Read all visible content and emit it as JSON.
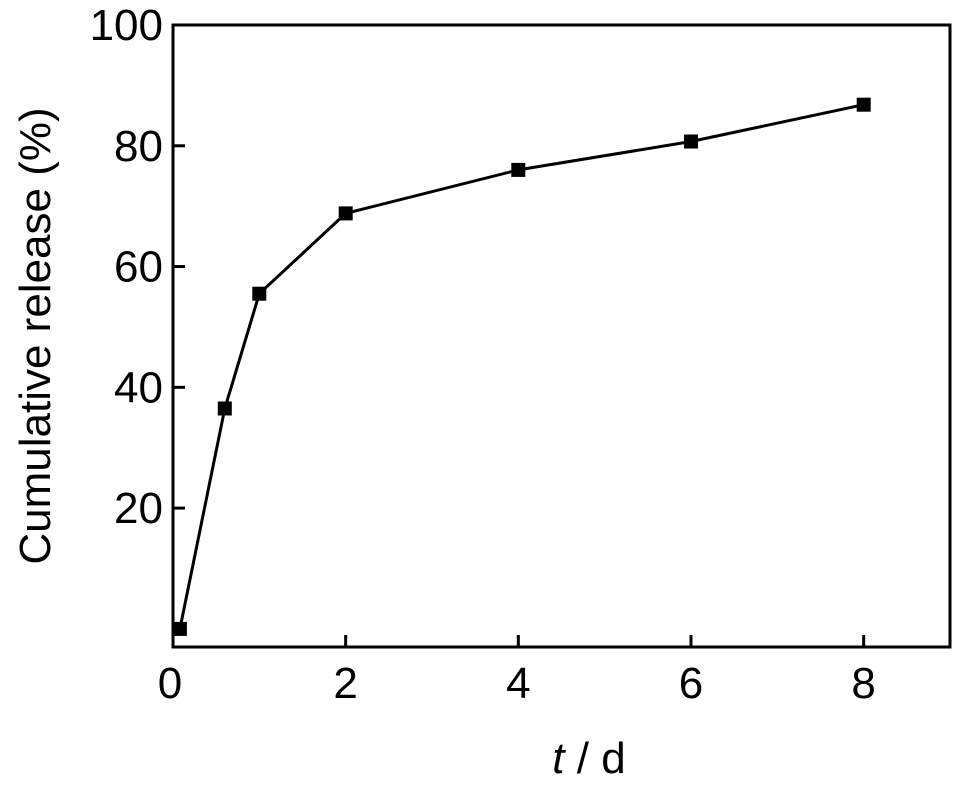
{
  "chart_data": {
    "type": "line",
    "title": "",
    "xlabel_italic": "t",
    "xlabel_rest": " / d",
    "ylabel": "Cumulative release (%)",
    "xlim": [
      0,
      9
    ],
    "ylim": [
      -3,
      100
    ],
    "x_ticks": [
      2,
      4,
      6,
      8
    ],
    "x_tick_labels": [
      "2",
      "4",
      "6",
      "8"
    ],
    "y_ticks": [
      20,
      40,
      60,
      80,
      100
    ],
    "y_tick_labels": [
      "20",
      "40",
      "60",
      "80",
      "100"
    ],
    "origin_label": "0",
    "grid": false,
    "legend": "none",
    "series": [
      {
        "marker": "square",
        "color": "#000000",
        "x": [
          0.08,
          0.6,
          1.0,
          2.0,
          4.0,
          6.0,
          8.0
        ],
        "y": [
          0,
          36.5,
          55.5,
          68.8,
          76.0,
          80.7,
          86.8
        ]
      }
    ]
  }
}
